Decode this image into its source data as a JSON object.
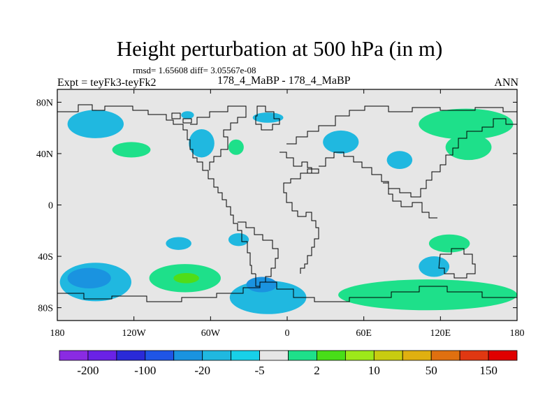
{
  "header": {
    "title": "Height perturbation at 500 hPa (in m)",
    "stats": "rmsd= 1.65608 diff= 3.05567e-08",
    "experiment": "Expt = teyFk3-teyFk2",
    "case": "178_4_MaBP - 178_4_MaBP",
    "season": "ANN"
  },
  "map": {
    "projection": "cylindrical equidistant",
    "lon_range": [
      -180,
      180
    ],
    "lat_range": [
      -90,
      90
    ],
    "background_color": "#e6e6e6",
    "x_ticks": [
      {
        "lon": -180,
        "label": "180"
      },
      {
        "lon": -120,
        "label": "120W"
      },
      {
        "lon": -60,
        "label": "60W"
      },
      {
        "lon": 0,
        "label": "0"
      },
      {
        "lon": 60,
        "label": "60E"
      },
      {
        "lon": 120,
        "label": "120E"
      },
      {
        "lon": 180,
        "label": "180"
      }
    ],
    "y_ticks": [
      {
        "lat": 80,
        "label": "80N"
      },
      {
        "lat": 40,
        "label": "40N"
      },
      {
        "lat": 0,
        "label": "0"
      },
      {
        "lat": -40,
        "label": "40S"
      },
      {
        "lat": -80,
        "label": "80S"
      }
    ],
    "anomaly_regions": [
      {
        "id": "np-west",
        "lon": -150,
        "lat": 63,
        "rlon": 22,
        "rlat": 11,
        "color": "#20b8e0"
      },
      {
        "id": "north-am-west",
        "lon": -122,
        "lat": 43,
        "rlon": 15,
        "rlat": 6,
        "color": "#1ee08a"
      },
      {
        "id": "north-am-central",
        "lon": -67,
        "lat": 48,
        "rlon": 10,
        "rlat": 11,
        "color": "#20b8e0"
      },
      {
        "id": "greenland",
        "lon": -78,
        "lat": 70,
        "rlon": 5,
        "rlat": 3,
        "color": "#20b8e0"
      },
      {
        "id": "atlantic",
        "lon": -40,
        "lat": 45,
        "rlon": 6,
        "rlat": 6,
        "color": "#1ee08a"
      },
      {
        "id": "europe-north",
        "lon": -15,
        "lat": 68,
        "rlon": 12,
        "rlat": 4,
        "color": "#20b8e0"
      },
      {
        "id": "eurasia-west",
        "lon": 42,
        "lat": 49,
        "rlon": 14,
        "rlat": 9,
        "color": "#20b8e0"
      },
      {
        "id": "central-asia",
        "lon": 88,
        "lat": 35,
        "rlon": 10,
        "rlat": 7,
        "color": "#20b8e0"
      },
      {
        "id": "siberia",
        "lon": 140,
        "lat": 63,
        "rlon": 37,
        "rlat": 12,
        "color": "#1ee08a"
      },
      {
        "id": "asia-east",
        "lon": 142,
        "lat": 45,
        "rlon": 18,
        "rlat": 10,
        "color": "#1ee08a"
      },
      {
        "id": "south-pac-a",
        "lon": -85,
        "lat": -30,
        "rlon": 10,
        "rlat": 5,
        "color": "#20b8e0"
      },
      {
        "id": "south-atl-a",
        "lon": -38,
        "lat": -27,
        "rlon": 8,
        "rlat": 5,
        "color": "#20b8e0"
      },
      {
        "id": "indian-ocean-e",
        "lon": 127,
        "lat": -30,
        "rlon": 16,
        "rlat": 7,
        "color": "#1ee08a"
      },
      {
        "id": "southern-ocean-w",
        "lon": -150,
        "lat": -60,
        "rlon": 28,
        "rlat": 15,
        "color": "#20b8e0"
      },
      {
        "id": "southern-ocean-wc",
        "lon": -80,
        "lat": -57,
        "rlon": 28,
        "rlat": 11,
        "color": "#1ee08a"
      },
      {
        "id": "southern-ocean-c",
        "lon": -15,
        "lat": -72,
        "rlon": 30,
        "rlat": 13,
        "color": "#20b8e0"
      },
      {
        "id": "southern-ocean-e",
        "lon": 110,
        "lat": -70,
        "rlon": 70,
        "rlat": 12,
        "color": "#1ee08a"
      },
      {
        "id": "southern-ocean-ae",
        "lon": 115,
        "lat": -48,
        "rlon": 12,
        "rlat": 8,
        "color": "#20b8e0"
      }
    ],
    "anomaly_cores": [
      {
        "id": "core-south-pac",
        "lon": -155,
        "lat": -57,
        "rlon": 17,
        "rlat": 8,
        "color": "#1a93e0"
      },
      {
        "id": "core-south-atl",
        "lon": -79,
        "lat": -57,
        "rlon": 10,
        "rlat": 4,
        "color": "#50dd18"
      },
      {
        "id": "core-weddell",
        "lon": -20,
        "lat": -62,
        "rlon": 12,
        "rlat": 6,
        "color": "#1a93e0"
      }
    ]
  },
  "colorbar": {
    "colors": [
      "#8a2be2",
      "#6a22e6",
      "#2a2ad8",
      "#1f55e6",
      "#1a93e0",
      "#20b8e0",
      "#18d0e8",
      "#e6e6e6",
      "#1ee08a",
      "#48dd18",
      "#9de81a",
      "#c8cc10",
      "#e0b010",
      "#e07010",
      "#e03812",
      "#e00000"
    ],
    "labels": [
      {
        "after_box": 1,
        "text": "-200"
      },
      {
        "after_box": 3,
        "text": "-100"
      },
      {
        "after_box": 5,
        "text": "-20"
      },
      {
        "after_box": 7,
        "text": "-5"
      },
      {
        "after_box": 9,
        "text": "2"
      },
      {
        "after_box": 11,
        "text": "10"
      },
      {
        "after_box": 13,
        "text": "50"
      },
      {
        "after_box": 15,
        "text": "150"
      }
    ]
  }
}
